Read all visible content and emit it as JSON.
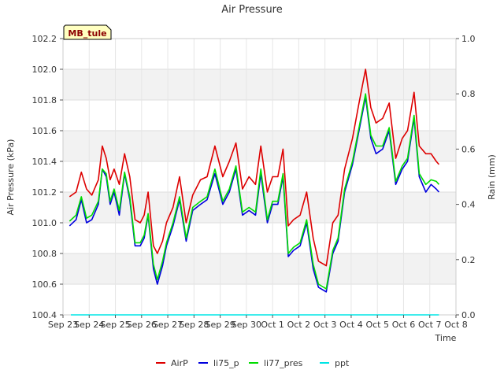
{
  "chart_data": {
    "type": "line",
    "title": "Air Pressure",
    "xlabel": "Time",
    "ylabel": "Air Pressure (kPa)",
    "y2label": "Rain (mm)",
    "badge": "MB_tule",
    "ylim": [
      100.4,
      102.2
    ],
    "y2lim": [
      0.0,
      1.0
    ],
    "xlim": [
      0,
      15
    ],
    "grid": true,
    "legend_position": "bottom-center",
    "x_ticks": [
      {
        "x": 0,
        "label": "Sep 23"
      },
      {
        "x": 1,
        "label": "Sep 24"
      },
      {
        "x": 2,
        "label": "Sep 25"
      },
      {
        "x": 3,
        "label": "Sep 26"
      },
      {
        "x": 4,
        "label": "Sep 27"
      },
      {
        "x": 5,
        "label": "Sep 28"
      },
      {
        "x": 6,
        "label": "Sep 29"
      },
      {
        "x": 7,
        "label": "Sep 30"
      },
      {
        "x": 8,
        "label": "Oct 1"
      },
      {
        "x": 9,
        "label": "Oct 2"
      },
      {
        "x": 10,
        "label": "Oct 3"
      },
      {
        "x": 11,
        "label": "Oct 4"
      },
      {
        "x": 12,
        "label": "Oct 5"
      },
      {
        "x": 13,
        "label": "Oct 6"
      },
      {
        "x": 14,
        "label": "Oct 7"
      },
      {
        "x": 15,
        "label": "Oct 8"
      }
    ],
    "y_ticks": [
      "100.4",
      "100.6",
      "100.8",
      "101.0",
      "101.2",
      "101.4",
      "101.6",
      "101.8",
      "102.0",
      "102.2"
    ],
    "y2_ticks": [
      "0.0",
      "0.2",
      "0.4",
      "0.6",
      "0.8",
      "1.0"
    ],
    "series": [
      {
        "name": "AirP",
        "color": "#dd0000",
        "x": [
          0.25,
          0.5,
          0.7,
          0.9,
          1.1,
          1.35,
          1.5,
          1.65,
          1.8,
          1.95,
          2.15,
          2.35,
          2.55,
          2.75,
          2.95,
          3.1,
          3.25,
          3.45,
          3.6,
          3.8,
          3.95,
          4.2,
          4.45,
          4.7,
          4.95,
          5.25,
          5.5,
          5.8,
          6.1,
          6.35,
          6.6,
          6.85,
          7.1,
          7.35,
          7.55,
          7.8,
          8.0,
          8.2,
          8.4,
          8.6,
          8.8,
          9.05,
          9.3,
          9.55,
          9.75,
          10.05,
          10.3,
          10.5,
          10.75,
          11.05,
          11.3,
          11.55,
          11.75,
          11.95,
          12.2,
          12.45,
          12.7,
          12.95,
          13.15,
          13.4,
          13.6,
          13.85,
          14.05,
          14.25,
          14.35
        ],
        "y": [
          101.17,
          101.2,
          101.33,
          101.22,
          101.18,
          101.28,
          101.5,
          101.42,
          101.28,
          101.35,
          101.25,
          101.45,
          101.3,
          101.02,
          101.0,
          101.05,
          101.2,
          100.85,
          100.8,
          100.88,
          101.0,
          101.1,
          101.3,
          101.0,
          101.18,
          101.28,
          101.3,
          101.5,
          101.3,
          101.4,
          101.52,
          101.22,
          101.3,
          101.25,
          101.5,
          101.2,
          101.3,
          101.3,
          101.48,
          100.98,
          101.02,
          101.05,
          101.2,
          100.9,
          100.75,
          100.72,
          101.0,
          101.05,
          101.35,
          101.55,
          101.78,
          102.0,
          101.75,
          101.65,
          101.68,
          101.78,
          101.42,
          101.55,
          101.6,
          101.85,
          101.5,
          101.45,
          101.45,
          101.4,
          101.38
        ]
      },
      {
        "name": "li75_p",
        "color": "#0000dd",
        "x": [
          0.25,
          0.5,
          0.7,
          0.9,
          1.1,
          1.35,
          1.5,
          1.65,
          1.8,
          1.95,
          2.15,
          2.35,
          2.55,
          2.75,
          2.95,
          3.1,
          3.25,
          3.45,
          3.6,
          3.8,
          3.95,
          4.2,
          4.45,
          4.7,
          4.95,
          5.25,
          5.5,
          5.8,
          6.1,
          6.35,
          6.6,
          6.85,
          7.1,
          7.35,
          7.55,
          7.8,
          8.0,
          8.2,
          8.4,
          8.6,
          8.8,
          9.05,
          9.3,
          9.55,
          9.75,
          10.05,
          10.3,
          10.5,
          10.75,
          11.05,
          11.3,
          11.55,
          11.75,
          11.95,
          12.2,
          12.45,
          12.7,
          12.95,
          13.15,
          13.4,
          13.6,
          13.85,
          14.05,
          14.25,
          14.35
        ],
        "y": [
          100.98,
          101.02,
          101.15,
          101.0,
          101.02,
          101.12,
          101.35,
          101.3,
          101.12,
          101.2,
          101.05,
          101.32,
          101.15,
          100.85,
          100.85,
          100.9,
          101.05,
          100.7,
          100.6,
          100.72,
          100.85,
          100.98,
          101.15,
          100.88,
          101.08,
          101.12,
          101.15,
          101.32,
          101.12,
          101.2,
          101.35,
          101.05,
          101.08,
          101.05,
          101.32,
          101.0,
          101.12,
          101.12,
          101.3,
          100.78,
          100.82,
          100.85,
          101.0,
          100.7,
          100.58,
          100.55,
          100.8,
          100.88,
          101.2,
          101.38,
          101.6,
          101.82,
          101.55,
          101.45,
          101.48,
          101.6,
          101.25,
          101.35,
          101.4,
          101.68,
          101.3,
          101.2,
          101.25,
          101.22,
          101.2
        ]
      },
      {
        "name": "li77_pres",
        "color": "#00dd00",
        "x": [
          0.25,
          0.5,
          0.7,
          0.9,
          1.1,
          1.35,
          1.5,
          1.65,
          1.8,
          1.95,
          2.15,
          2.35,
          2.55,
          2.75,
          2.95,
          3.1,
          3.25,
          3.45,
          3.6,
          3.8,
          3.95,
          4.2,
          4.45,
          4.7,
          4.95,
          5.25,
          5.5,
          5.8,
          6.1,
          6.35,
          6.6,
          6.85,
          7.1,
          7.35,
          7.55,
          7.8,
          8.0,
          8.2,
          8.4,
          8.6,
          8.8,
          9.05,
          9.3,
          9.55,
          9.75,
          10.05,
          10.3,
          10.5,
          10.75,
          11.05,
          11.3,
          11.55,
          11.75,
          11.95,
          12.2,
          12.45,
          12.7,
          12.95,
          13.15,
          13.4,
          13.6,
          13.85,
          14.05,
          14.25,
          14.35
        ],
        "y": [
          101.01,
          101.05,
          101.17,
          101.03,
          101.05,
          101.14,
          101.35,
          101.32,
          101.14,
          101.22,
          101.08,
          101.33,
          101.17,
          100.87,
          100.87,
          100.92,
          101.06,
          100.73,
          100.63,
          100.75,
          100.87,
          101.0,
          101.17,
          100.9,
          101.1,
          101.14,
          101.17,
          101.35,
          101.14,
          101.22,
          101.37,
          101.07,
          101.1,
          101.07,
          101.35,
          101.02,
          101.14,
          101.14,
          101.32,
          100.8,
          100.84,
          100.87,
          101.02,
          100.73,
          100.6,
          100.57,
          100.82,
          100.9,
          101.22,
          101.4,
          101.62,
          101.84,
          101.57,
          101.5,
          101.5,
          101.62,
          101.27,
          101.37,
          101.42,
          101.7,
          101.32,
          101.25,
          101.28,
          101.27,
          101.25
        ]
      },
      {
        "name": "ppt",
        "color": "#00e5e5",
        "axis": "y2",
        "x": [
          0.3,
          14.35
        ],
        "y": [
          0.0,
          0.0
        ]
      }
    ]
  }
}
